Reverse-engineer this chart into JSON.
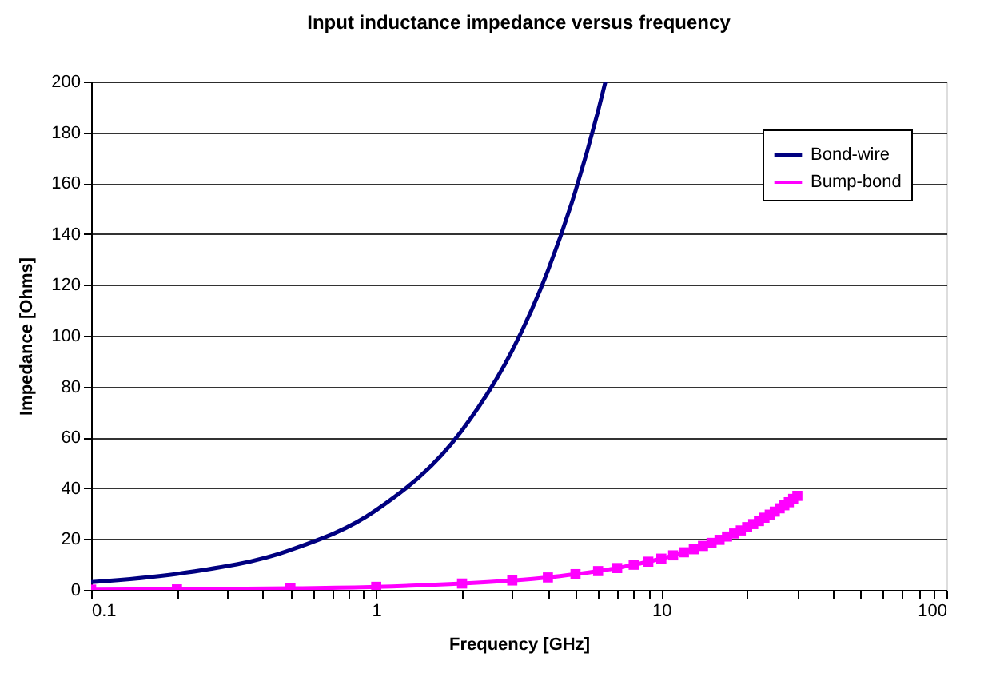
{
  "chart_data": {
    "type": "line",
    "title": "Input inductance impedance versus frequency",
    "xlabel": "Frequency [GHz]",
    "ylabel": "Impedance [Ohms]",
    "log": "x",
    "xlim": [
      0.1,
      100
    ],
    "xticks": [
      0.1,
      {
        "value": 0.2,
        "label": null
      },
      {
        "value": 0.3,
        "label": null
      },
      {
        "value": 0.4,
        "label": null
      },
      {
        "value": 0.5,
        "label": null
      },
      {
        "value": 0.6,
        "label": null
      },
      {
        "value": 0.7,
        "label": null
      },
      {
        "value": 0.8,
        "label": null
      },
      {
        "value": 0.9,
        "label": null
      },
      1,
      {
        "value": 2,
        "label": null
      },
      {
        "value": 3,
        "label": null
      },
      {
        "value": 4,
        "label": null
      },
      {
        "value": 5,
        "label": null
      },
      {
        "value": 6,
        "label": null
      },
      {
        "value": 7,
        "label": null
      },
      {
        "value": 8,
        "label": null
      },
      {
        "value": 9,
        "label": null
      },
      10,
      {
        "value": 20,
        "label": null
      },
      {
        "value": 30,
        "label": null
      },
      {
        "value": 40,
        "label": null
      },
      {
        "value": 50,
        "label": null
      },
      {
        "value": 60,
        "label": null
      },
      {
        "value": 70,
        "label": null
      },
      {
        "value": 80,
        "label": null
      },
      {
        "value": 90,
        "label": null
      },
      100
    ],
    "ylim": [
      0,
      200
    ],
    "yticks": [
      0,
      20,
      40,
      60,
      80,
      100,
      120,
      140,
      160,
      180,
      200
    ],
    "grid": "y",
    "legend": "top right",
    "series": [
      {
        "name": "Bond-wire",
        "color": "#000080",
        "marker": "none",
        "x": [
          0.1,
          0.2,
          0.5,
          1,
          2,
          3,
          4,
          5,
          6,
          6.37
        ],
        "values": [
          3.1,
          6.3,
          15.7,
          31.4,
          62.8,
          94.2,
          125.6,
          157,
          188.4,
          200
        ]
      },
      {
        "name": "Bump-bond",
        "color": "#ff00ff",
        "marker": "square",
        "x": [
          0.1,
          0.2,
          0.5,
          1,
          2,
          3,
          4,
          5,
          6,
          7,
          8,
          9,
          10,
          11,
          12,
          13,
          14,
          15,
          16,
          17,
          18,
          19,
          20,
          21,
          22,
          23,
          24,
          25,
          26,
          27,
          28,
          29,
          30
        ],
        "values": [
          0.1,
          0.2,
          0.6,
          1.2,
          2.5,
          3.7,
          4.9,
          6.2,
          7.4,
          8.6,
          9.9,
          11.1,
          12.3,
          13.6,
          14.8,
          16,
          17.3,
          18.5,
          19.7,
          21,
          22.2,
          23.4,
          24.7,
          25.9,
          27.1,
          28.4,
          29.6,
          30.8,
          32.1,
          33.3,
          34.5,
          35.8,
          37
        ]
      }
    ]
  }
}
